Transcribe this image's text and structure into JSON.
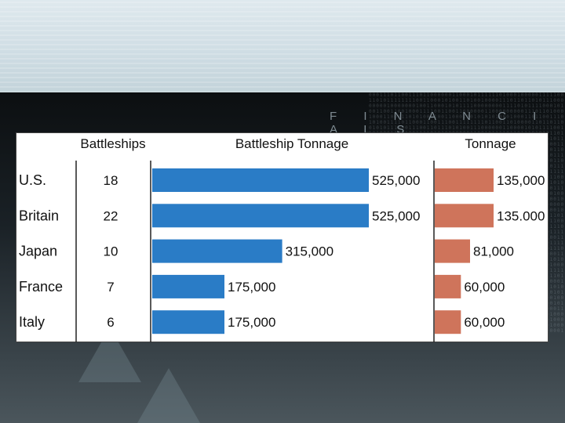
{
  "brand": "F I N A N C I A L S",
  "colors": {
    "tonnage_bar": "#2a7cc6",
    "treaty_bar": "#cf745b"
  },
  "chart_data": {
    "type": "table",
    "columns": [
      "Battleships",
      "Battleship Tonnage",
      "Tonnage"
    ],
    "rows": [
      {
        "country": "U.S.",
        "battleships": 18,
        "battleship_tonnage": 525000,
        "battleship_tonnage_label": "525,000",
        "tonnage": 135000,
        "tonnage_label": "135,000"
      },
      {
        "country": "Britain",
        "battleships": 22,
        "battleship_tonnage": 525000,
        "battleship_tonnage_label": "525,000",
        "tonnage": 135000,
        "tonnage_label": "135.000"
      },
      {
        "country": "Japan",
        "battleships": 10,
        "battleship_tonnage": 315000,
        "battleship_tonnage_label": "315,000",
        "tonnage": 81000,
        "tonnage_label": "81,000"
      },
      {
        "country": "France",
        "battleships": 7,
        "battleship_tonnage": 175000,
        "battleship_tonnage_label": "175,000",
        "tonnage": 60000,
        "tonnage_label": "60,000"
      },
      {
        "country": "Italy",
        "battleships": 6,
        "battleship_tonnage": 175000,
        "battleship_tonnage_label": "175,000",
        "tonnage": 60000,
        "tonnage_label": "60,000"
      }
    ]
  }
}
